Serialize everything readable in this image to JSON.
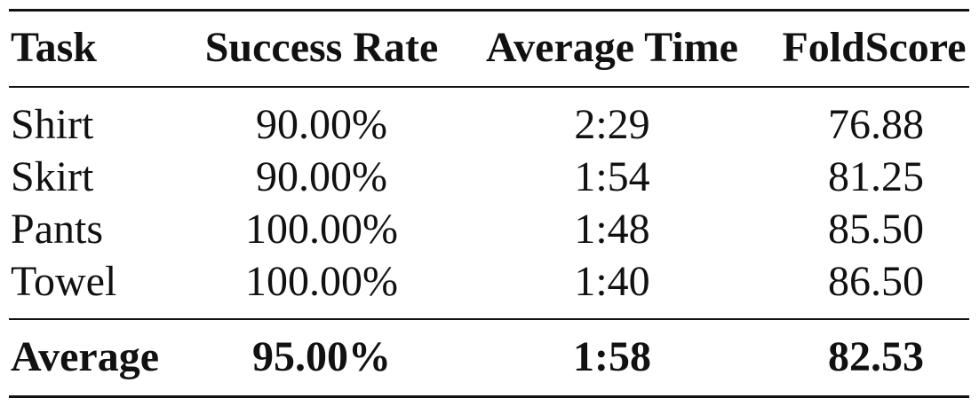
{
  "table": {
    "headers": [
      "Task",
      "Success Rate",
      "Average Time",
      "FoldScore"
    ],
    "rows": [
      [
        "Shirt",
        "90.00%",
        "2:29",
        "76.88"
      ],
      [
        "Skirt",
        "90.00%",
        "1:54",
        "81.25"
      ],
      [
        "Pants",
        "100.00%",
        "1:48",
        "85.50"
      ],
      [
        "Towel",
        "100.00%",
        "1:40",
        "86.50"
      ]
    ],
    "average": [
      "Average",
      "95.00%",
      "1:58",
      "82.53"
    ]
  }
}
